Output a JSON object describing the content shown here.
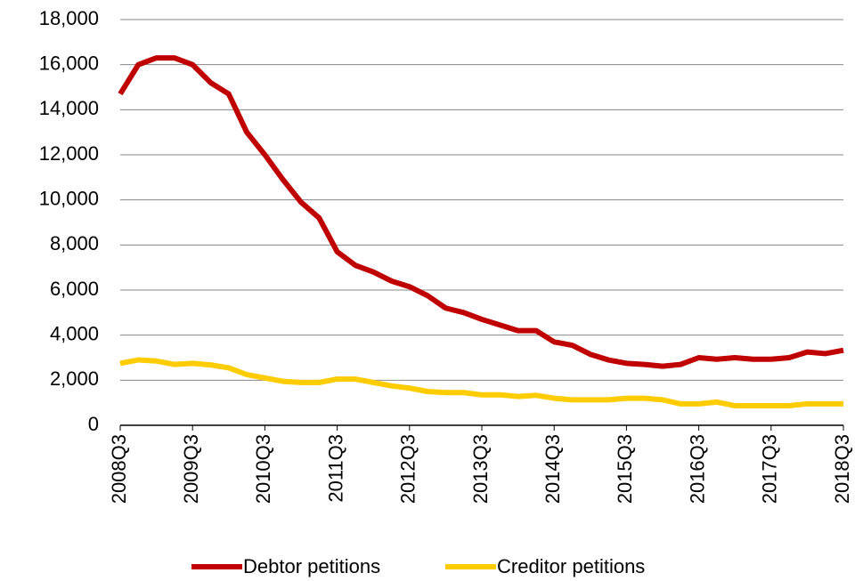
{
  "chart_data": {
    "type": "line",
    "categories": [
      "2008Q3",
      null,
      null,
      null,
      "2009Q3",
      null,
      null,
      null,
      "2010Q3",
      null,
      null,
      null,
      "2011Q3",
      null,
      null,
      null,
      "2012Q3",
      null,
      null,
      null,
      "2013Q3",
      null,
      null,
      null,
      "2014Q3",
      null,
      null,
      null,
      "2015Q3",
      null,
      null,
      null,
      "2016Q3",
      null,
      null,
      null,
      "2017Q3",
      null,
      null,
      null,
      "2018Q3"
    ],
    "series": [
      {
        "name": "Debtor petitions",
        "color": "#c00000",
        "values": [
          14700,
          16000,
          16300,
          16300,
          16000,
          15200,
          14700,
          13000,
          12000,
          10900,
          9900,
          9200,
          7700,
          7100,
          6800,
          6400,
          6150,
          5750,
          5200,
          5000,
          4700,
          4450,
          4200,
          4200,
          3700,
          3550,
          3150,
          2900,
          2750,
          2700,
          2620,
          2700,
          3000,
          2930,
          3000,
          2930,
          2930,
          3000,
          3250,
          3180,
          3330
        ]
      },
      {
        "name": "Creditor petitions",
        "color": "#ffcc00",
        "values": [
          2750,
          2900,
          2850,
          2700,
          2750,
          2680,
          2550,
          2250,
          2100,
          1950,
          1900,
          1900,
          2050,
          2050,
          1900,
          1750,
          1650,
          1500,
          1450,
          1450,
          1350,
          1350,
          1280,
          1330,
          1200,
          1130,
          1130,
          1130,
          1200,
          1200,
          1130,
          950,
          950,
          1030,
          870,
          870,
          870,
          870,
          950,
          950,
          950
        ]
      }
    ],
    "ylim": [
      0,
      18000
    ],
    "yticks": [
      0,
      {
        "value": 2000,
        "label": "2,000"
      },
      {
        "value": 4000,
        "label": "4,000"
      },
      {
        "value": 6000,
        "label": "6,000"
      },
      {
        "value": 8000,
        "label": "8,000"
      },
      {
        "value": 10000,
        "label": "10,000"
      },
      {
        "value": 12000,
        "label": "12,000"
      },
      {
        "value": 14000,
        "label": "14,000"
      },
      {
        "value": 16000,
        "label": "16,000"
      },
      {
        "value": 18000,
        "label": "18,000"
      }
    ],
    "grid": true,
    "legend": "bottom"
  }
}
